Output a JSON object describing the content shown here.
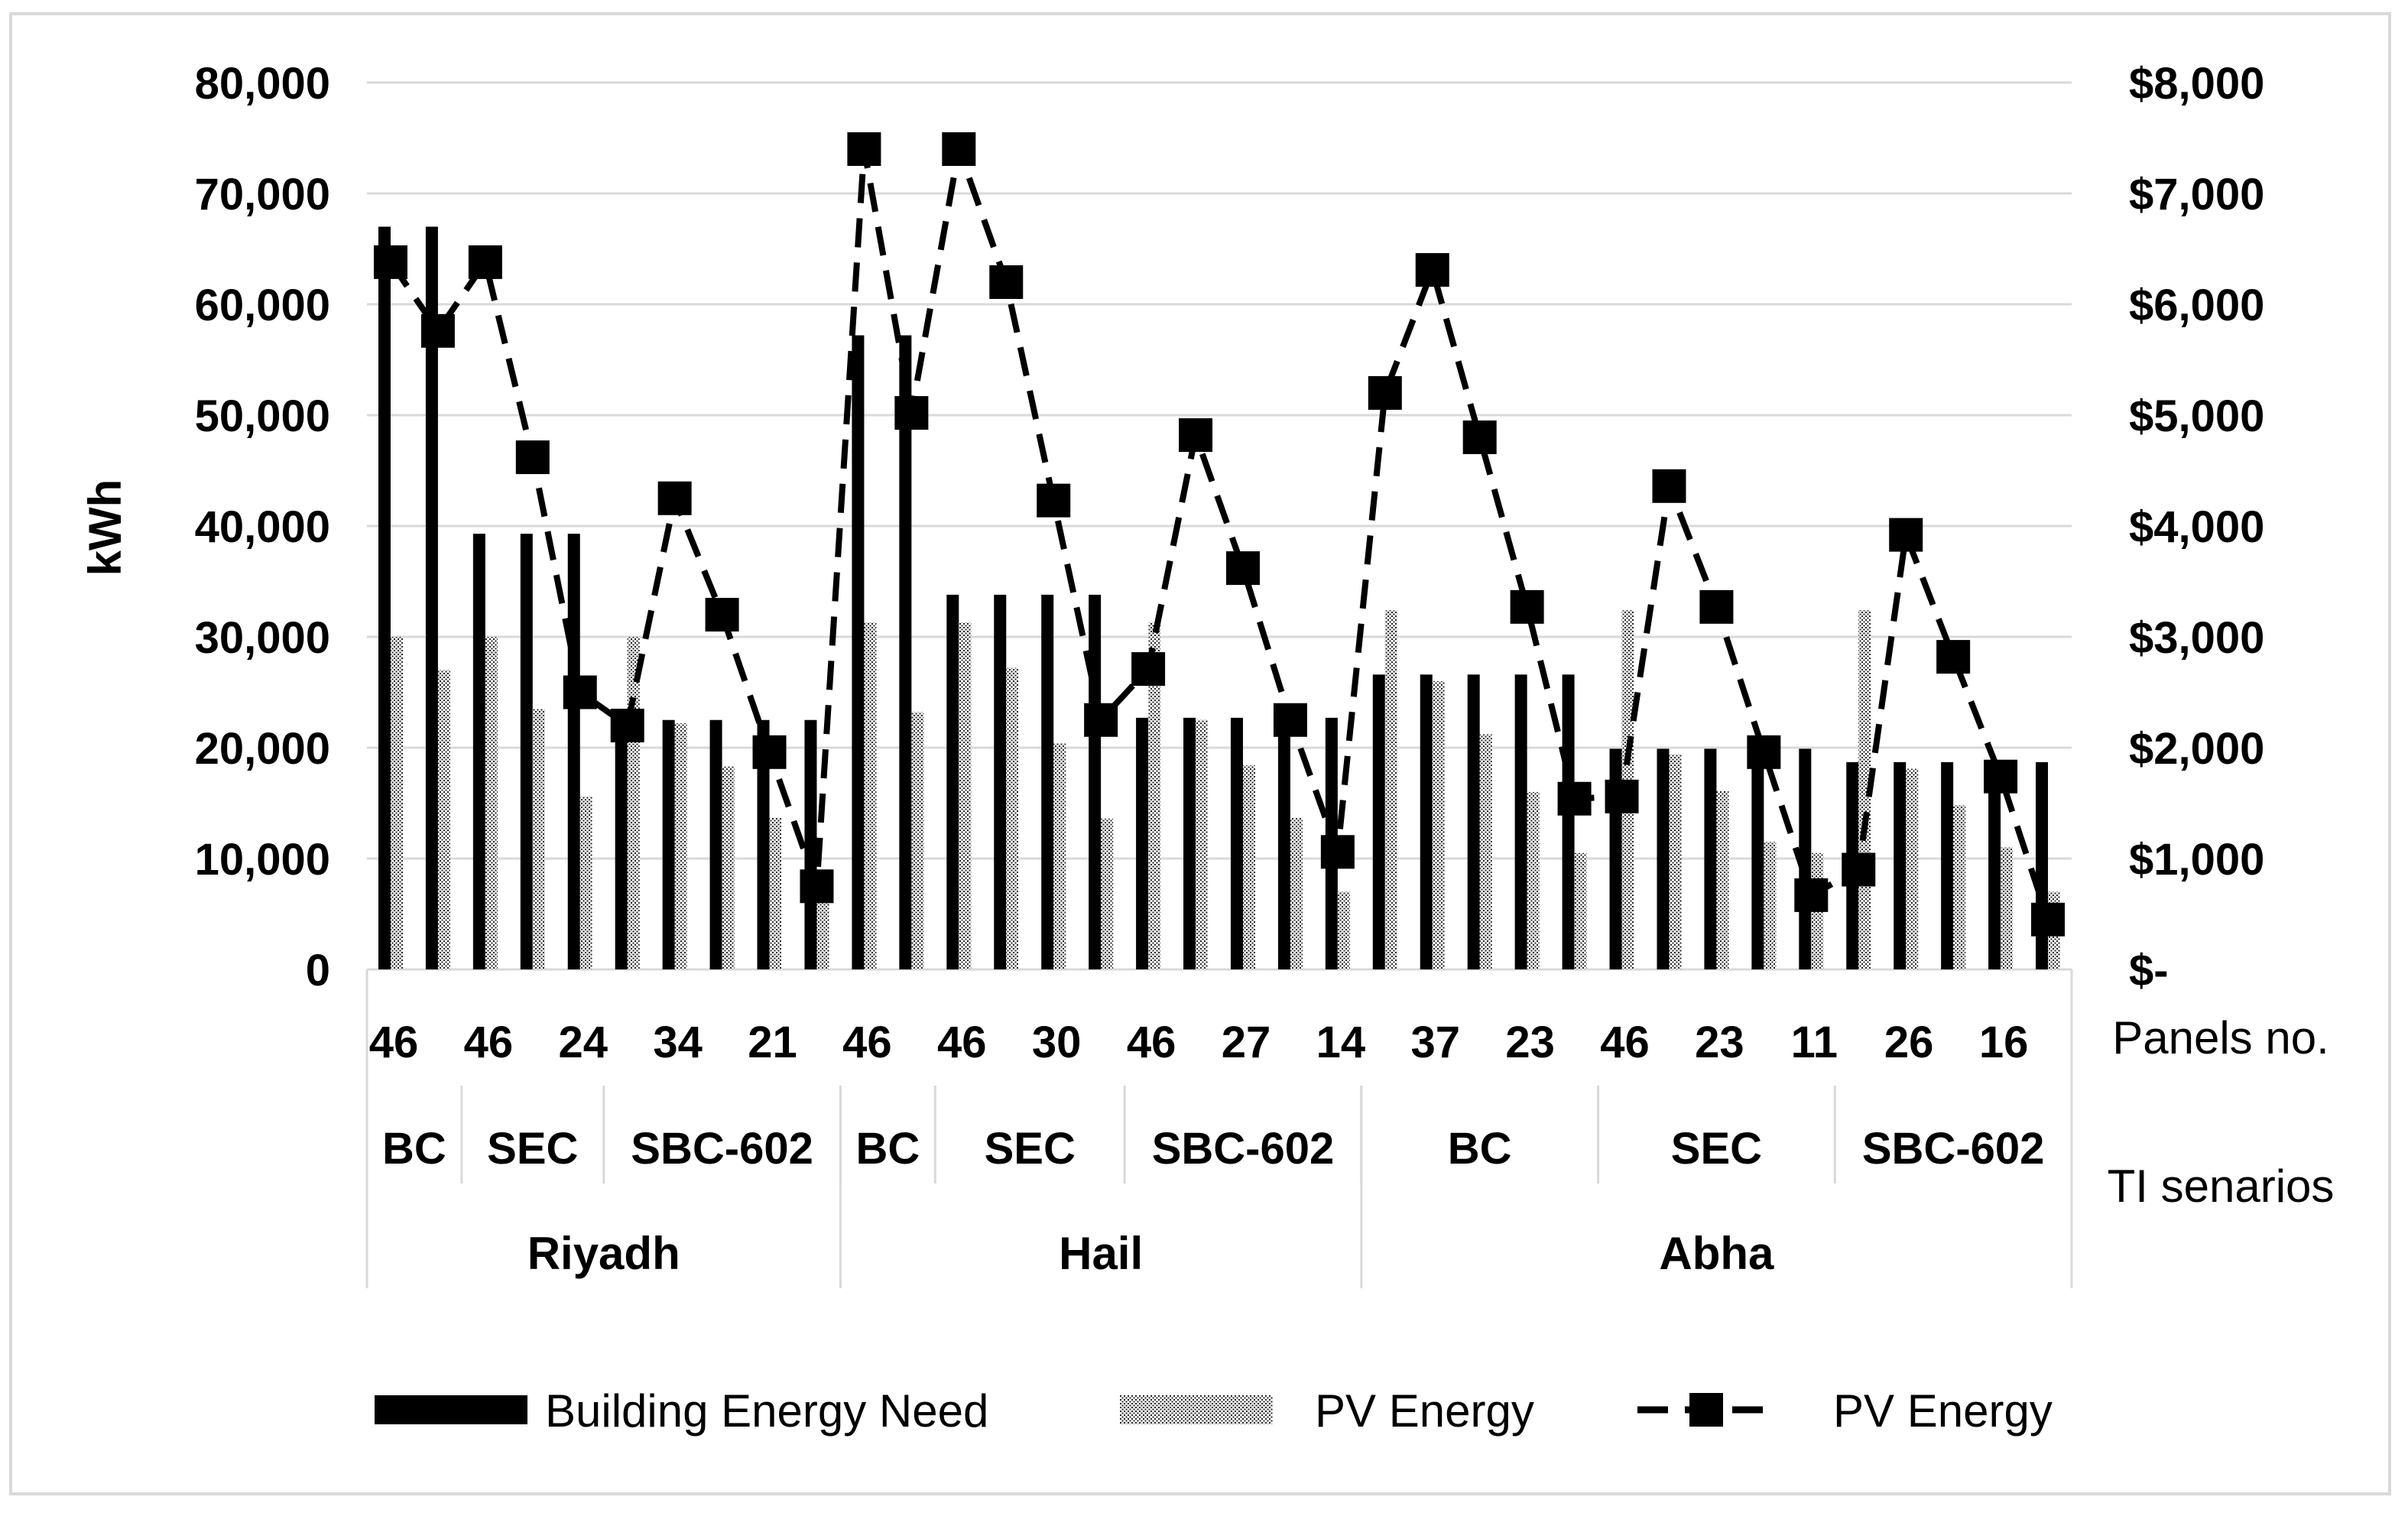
{
  "chart_data": {
    "type": "bar",
    "title": "",
    "ylabel": "kWh",
    "y2label": "",
    "ylim": [
      0,
      80000
    ],
    "y2lim": [
      0,
      8000
    ],
    "yticks": [
      "0",
      "10,000",
      "20,000",
      "30,000",
      "40,000",
      "50,000",
      "60,000",
      "70,000",
      "80,000"
    ],
    "y2ticks": [
      "$-",
      "$1,000",
      "$2,000",
      "$3,000",
      "$4,000",
      "$5,000",
      "$6,000",
      "$7,000",
      "$8,000"
    ],
    "axis_level_labels": {
      "panels": "Panels no.",
      "scenarios": "TI senarios"
    },
    "panel_labels": [
      "46",
      "",
      "46",
      "",
      "24",
      "",
      "34",
      "",
      "21",
      "",
      "46",
      "",
      "46",
      "",
      "30",
      "",
      "46",
      "",
      "27",
      "",
      "14",
      "",
      "37",
      "",
      "23",
      "",
      "46",
      "",
      "23",
      "",
      "11",
      "",
      "26",
      "",
      "16",
      ""
    ],
    "scenarios": [
      {
        "label": "BC",
        "start": 0,
        "end": 2
      },
      {
        "label": "SEC",
        "start": 2,
        "end": 5
      },
      {
        "label": "SBC-602",
        "start": 5,
        "end": 10
      },
      {
        "label": "BC",
        "start": 10,
        "end": 12
      },
      {
        "label": "SEC",
        "start": 12,
        "end": 16
      },
      {
        "label": "SBC-602",
        "start": 16,
        "end": 21
      },
      {
        "label": "BC",
        "start": 21,
        "end": 26
      },
      {
        "label": "SEC",
        "start": 26,
        "end": 31
      },
      {
        "label": "SBC-602",
        "start": 31,
        "end": 36
      }
    ],
    "cities": [
      {
        "label": "Riyadh",
        "start": 0,
        "end": 10
      },
      {
        "label": "Hail",
        "start": 10,
        "end": 21
      },
      {
        "label": "Abha",
        "start": 21,
        "end": 36
      }
    ],
    "series": [
      {
        "name": "Building Energy Need",
        "axis": "left",
        "style": "solid",
        "values": [
          67000,
          67000,
          39300,
          39300,
          39300,
          22500,
          22500,
          22500,
          22500,
          22500,
          57200,
          57200,
          33800,
          33800,
          33800,
          33800,
          22700,
          22700,
          22700,
          22700,
          22700,
          26600,
          26600,
          26600,
          26600,
          26600,
          19900,
          19900,
          19900,
          19900,
          19900,
          18700,
          18700,
          18700,
          18700,
          18700
        ]
      },
      {
        "name": "PV Energy",
        "axis": "left",
        "style": "hatched",
        "values": [
          30000,
          27000,
          30000,
          23500,
          15600,
          30000,
          22200,
          18300,
          13700,
          7000,
          31300,
          23200,
          31300,
          27200,
          20400,
          13600,
          31300,
          22500,
          18400,
          13700,
          7000,
          32400,
          26000,
          21200,
          16000,
          10500,
          32400,
          19400,
          16100,
          11500,
          10500,
          32400,
          18100,
          14800,
          11000,
          7000
        ]
      },
      {
        "name": "PV Energy",
        "axis": "right",
        "style": "dashed-line-square",
        "values": [
          6380,
          5760,
          6380,
          4620,
          2500,
          2200,
          4250,
          3200,
          1960,
          750,
          7400,
          5020,
          7400,
          6200,
          4230,
          2250,
          2710,
          4820,
          3620,
          2250,
          1060,
          5200,
          6310,
          4800,
          3270,
          1540,
          1560,
          4360,
          3270,
          1960,
          670,
          900,
          3920,
          2820,
          1740,
          450
        ]
      }
    ],
    "legend_position": "bottom",
    "grid": true
  }
}
